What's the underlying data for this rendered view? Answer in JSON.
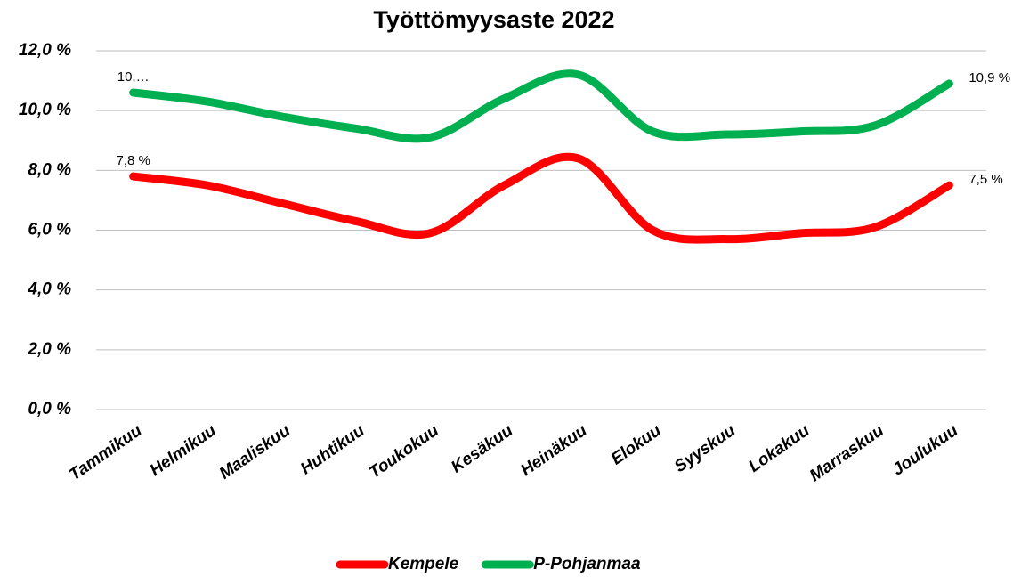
{
  "chart_data": {
    "type": "line",
    "title": "Työttömyysaste 2022",
    "categories": [
      "Tammikuu",
      "Helmikuu",
      "Maaliskuu",
      "Huhtikuu",
      "Toukokuu",
      "Kesäkuu",
      "Heinäkuu",
      "Elokuu",
      "Syyskuu",
      "Lokakuu",
      "Marraskuu",
      "Joulukuu"
    ],
    "series": [
      {
        "name": "Kempele",
        "color": "#ff0000",
        "values": [
          7.8,
          7.5,
          6.9,
          6.3,
          5.9,
          7.5,
          8.4,
          6.0,
          5.7,
          5.9,
          6.1,
          7.5
        ],
        "value_labels": [
          "7,8 %",
          null,
          null,
          null,
          null,
          null,
          null,
          null,
          null,
          null,
          null,
          "7,5 %"
        ]
      },
      {
        "name": "P-Pohjanmaa",
        "color": "#00b050",
        "values": [
          10.6,
          10.3,
          9.8,
          9.4,
          9.1,
          10.4,
          11.2,
          9.3,
          9.2,
          9.3,
          9.5,
          10.9
        ],
        "value_labels": [
          "10,…",
          null,
          null,
          null,
          null,
          null,
          null,
          null,
          null,
          null,
          null,
          "10,9 %"
        ]
      }
    ],
    "ylim": [
      0,
      12
    ],
    "yticks": [
      {
        "value": 0,
        "label": "0,0 %"
      },
      {
        "value": 2,
        "label": "2,0 %"
      },
      {
        "value": 4,
        "label": "4,0 %"
      },
      {
        "value": 6,
        "label": "6,0 %"
      },
      {
        "value": 8,
        "label": "8,0 %"
      },
      {
        "value": 10,
        "label": "10,0 %"
      },
      {
        "value": 12,
        "label": "12,0 %"
      }
    ],
    "grid": true,
    "smooth": true,
    "legend": "bottom"
  }
}
